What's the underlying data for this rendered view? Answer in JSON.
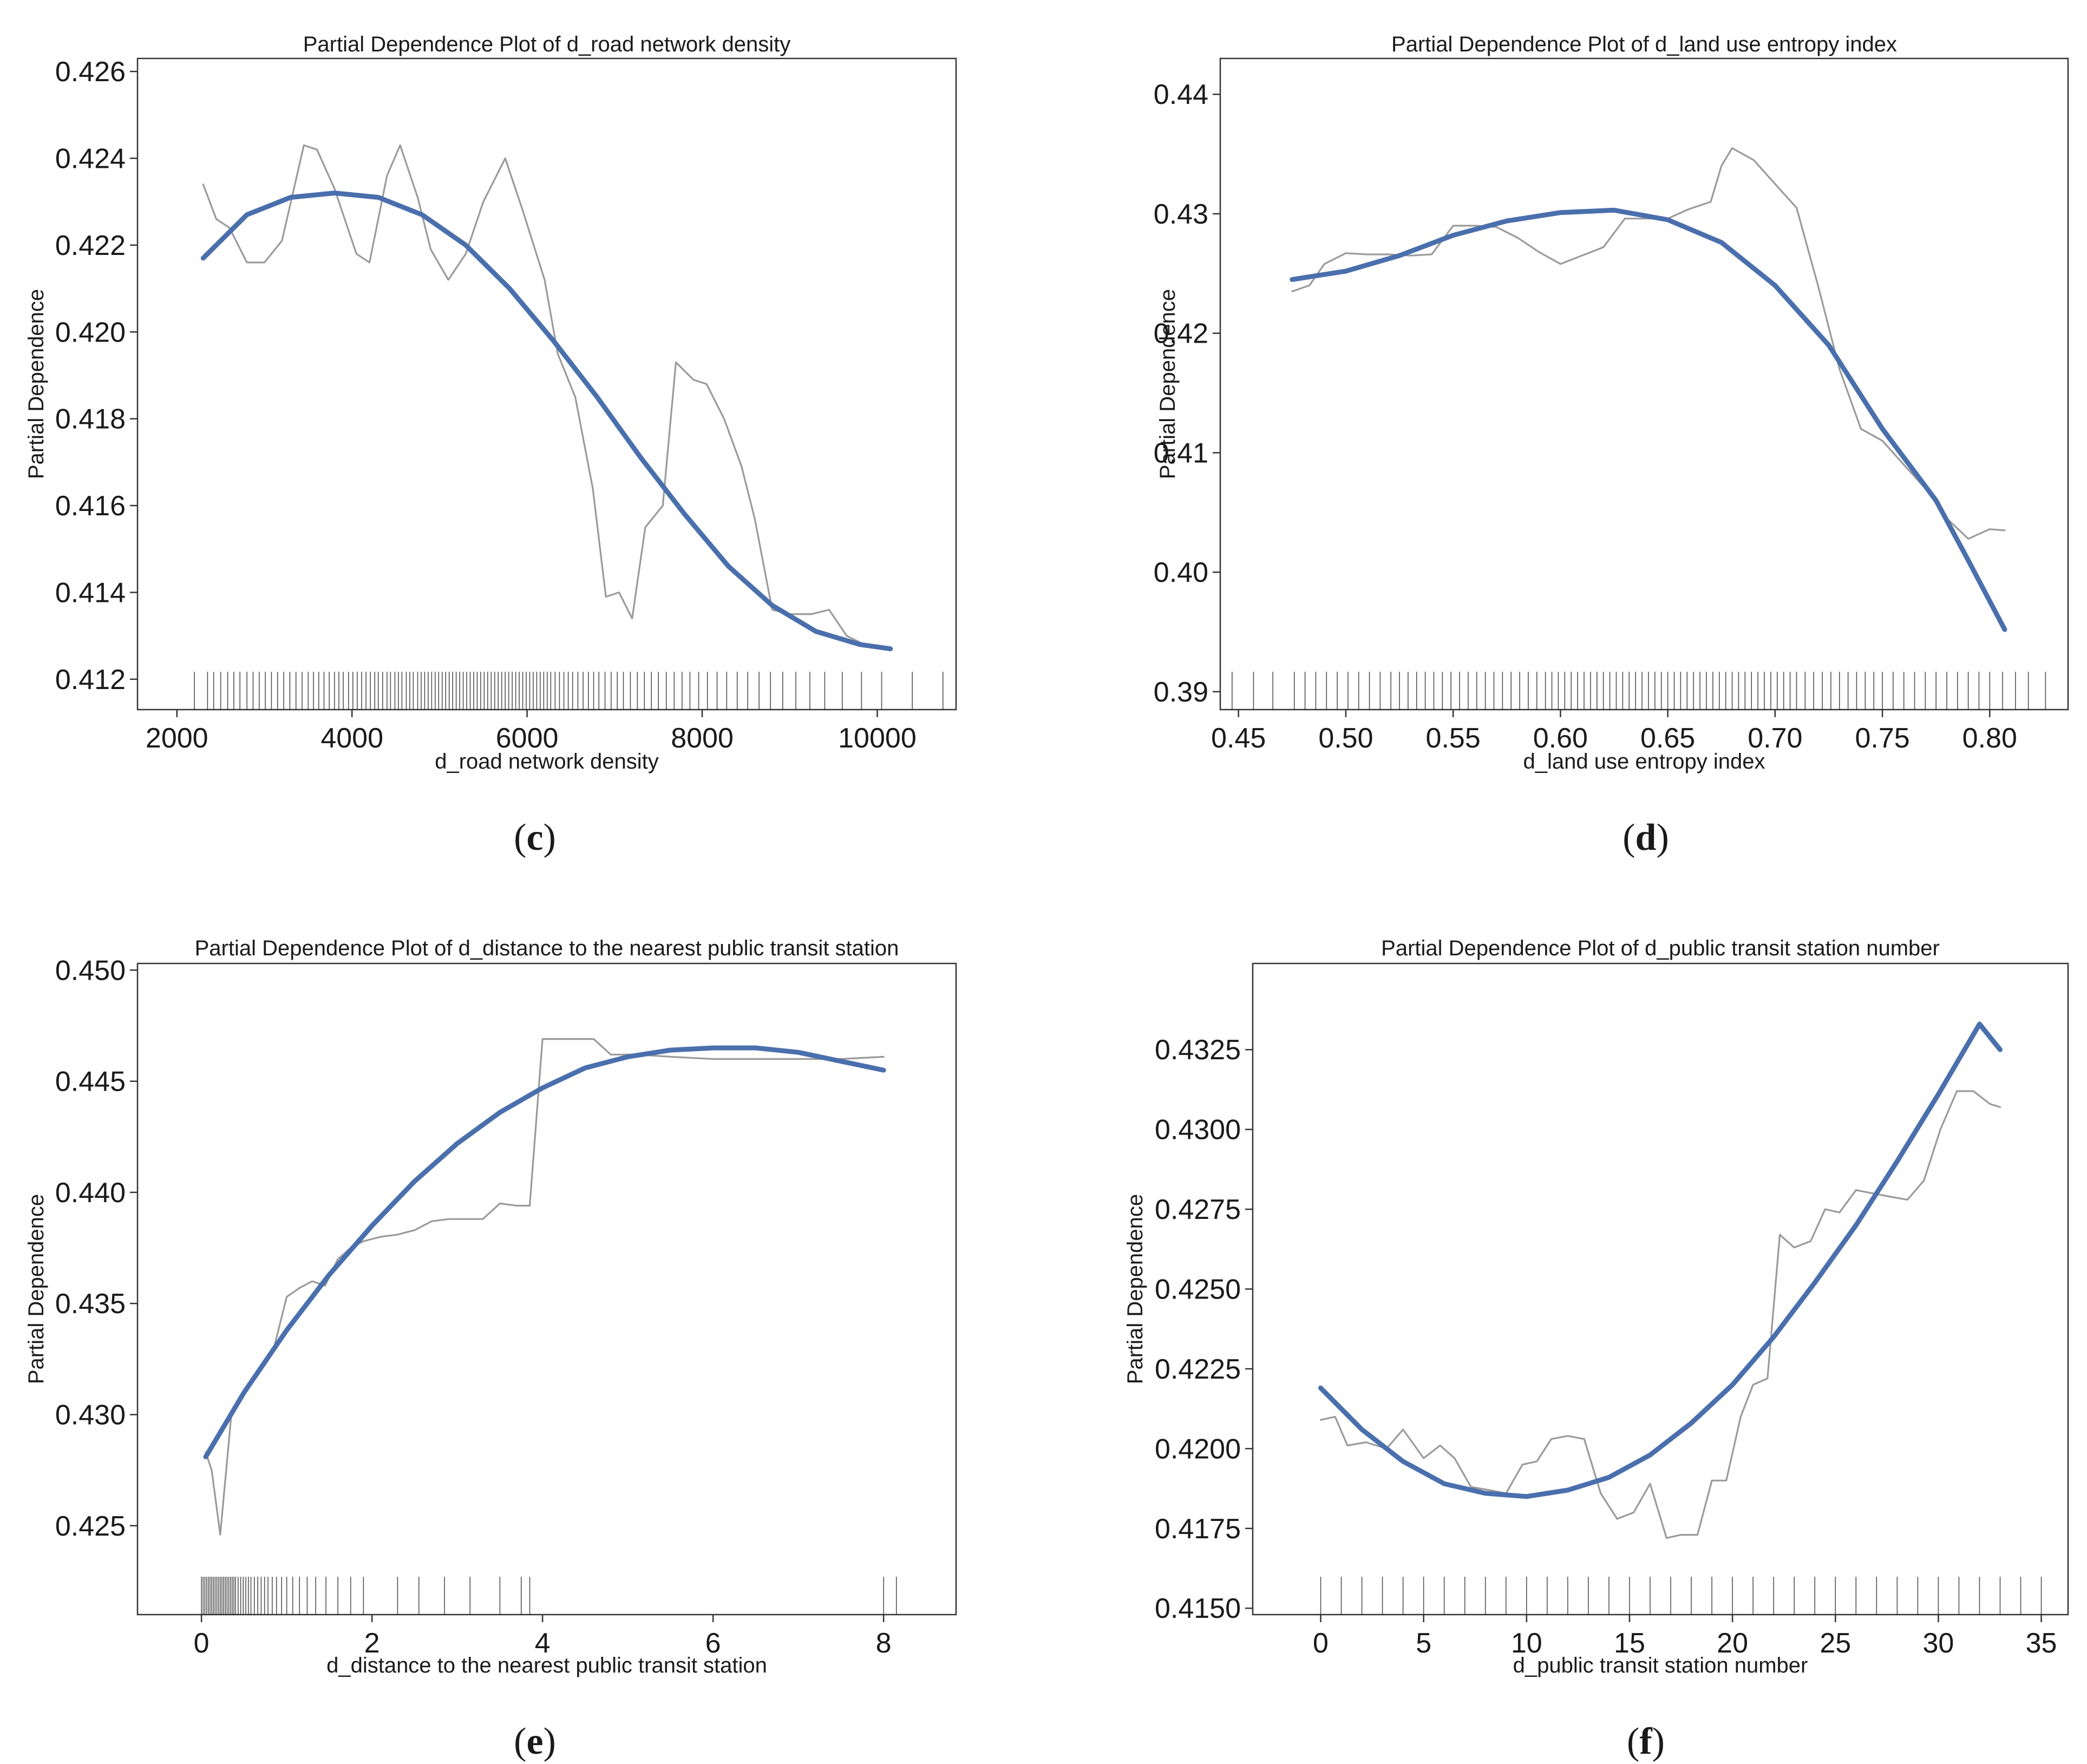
{
  "figure": {
    "colors": {
      "smooth": "#4a6fad",
      "pd_line": "#9a9a9a",
      "rug": "#1a1a1a",
      "axis": "#333333",
      "text": "#1a1a1a"
    }
  },
  "chart_data": [
    {
      "type": "line",
      "panel_label": "c",
      "title": "Partial Dependence Plot of d_road network density",
      "xlabel": "d_road network density",
      "ylabel": "Partial Dependence",
      "xlim": [
        1550,
        10900
      ],
      "ylim": [
        0.4113,
        0.4263
      ],
      "xticks": [
        2000,
        4000,
        6000,
        8000,
        10000
      ],
      "xtick_labels": [
        "2000",
        "4000",
        "6000",
        "8000",
        "10000"
      ],
      "yticks": [
        0.412,
        0.414,
        0.416,
        0.418,
        0.42,
        0.422,
        0.424,
        0.426
      ],
      "ytick_labels": [
        "0.412",
        "0.414",
        "0.416",
        "0.418",
        "0.420",
        "0.422",
        "0.424",
        "0.426"
      ],
      "series": [
        {
          "name": "Partial Dependence",
          "x": [
            2300,
            2450,
            2600,
            2800,
            3000,
            3200,
            3450,
            3600,
            3800,
            4050,
            4200,
            4400,
            4550,
            4750,
            4900,
            5100,
            5300,
            5500,
            5750,
            5950,
            6200,
            6350,
            6550,
            6750,
            6900,
            7050,
            7200,
            7350,
            7550,
            7700,
            7900,
            8050,
            8250,
            8450,
            8600,
            8800,
            9000,
            9250,
            9450,
            9650,
            9850,
            10100
          ],
          "y": [
            0.4234,
            0.4226,
            0.4224,
            0.4216,
            0.4216,
            0.4221,
            0.4243,
            0.4242,
            0.4233,
            0.4218,
            0.4216,
            0.4236,
            0.4243,
            0.4231,
            0.4219,
            0.4212,
            0.4218,
            0.423,
            0.424,
            0.4228,
            0.4212,
            0.4195,
            0.4185,
            0.4164,
            0.4139,
            0.414,
            0.4134,
            0.4155,
            0.416,
            0.4193,
            0.4189,
            0.4188,
            0.418,
            0.4169,
            0.4157,
            0.4136,
            0.4135,
            0.4135,
            0.4136,
            0.413,
            0.4128,
            0.4127
          ]
        },
        {
          "name": "Smoothed trend",
          "x": [
            2300,
            2800,
            3300,
            3800,
            4300,
            4800,
            5300,
            5800,
            6300,
            6800,
            7300,
            7800,
            8300,
            8800,
            9300,
            9800,
            10150
          ],
          "y": [
            0.4217,
            0.4227,
            0.4231,
            0.4232,
            0.4231,
            0.4227,
            0.422,
            0.421,
            0.4198,
            0.4185,
            0.4171,
            0.4158,
            0.4146,
            0.4137,
            0.4131,
            0.4128,
            0.4127
          ]
        }
      ],
      "rug": {
        "x": [
          2200,
          2350,
          2420,
          2500,
          2580,
          2650,
          2720,
          2800,
          2870,
          2940,
          3010,
          3080,
          3150,
          3220,
          3290,
          3360,
          3430,
          3500,
          3560,
          3620,
          3680,
          3740,
          3800,
          3850,
          3900,
          3960,
          4010,
          4060,
          4110,
          4160,
          4210,
          4260,
          4300,
          4350,
          4400,
          4440,
          4490,
          4530,
          4570,
          4620,
          4660,
          4700,
          4750,
          4790,
          4830,
          4870,
          4910,
          4950,
          4990,
          5030,
          5070,
          5110,
          5150,
          5190,
          5230,
          5270,
          5310,
          5350,
          5390,
          5430,
          5470,
          5510,
          5550,
          5590,
          5630,
          5670,
          5710,
          5750,
          5790,
          5830,
          5870,
          5910,
          5950,
          5990,
          6030,
          6070,
          6110,
          6150,
          6190,
          6230,
          6270,
          6320,
          6370,
          6420,
          6470,
          6520,
          6580,
          6640,
          6700,
          6760,
          6820,
          6890,
          6960,
          7030,
          7100,
          7180,
          7260,
          7340,
          7420,
          7500,
          7590,
          7680,
          7770,
          7860,
          7960,
          8060,
          8170,
          8280,
          8400,
          8520,
          8650,
          8780,
          8920,
          9070,
          9230,
          9400,
          9600,
          9820,
          10050,
          10400,
          10750
        ]
      }
    },
    {
      "type": "line",
      "panel_label": "d",
      "title": "Partial Dependence Plot of d_land use entropy index",
      "xlabel": "d_land use entropy index",
      "ylabel": "Partial Dependence",
      "xlim": [
        0.4415,
        0.8365
      ],
      "ylim": [
        0.3885,
        0.443
      ],
      "xticks": [
        0.45,
        0.5,
        0.55,
        0.6,
        0.65,
        0.7,
        0.75,
        0.8
      ],
      "xtick_labels": [
        "0.45",
        "0.50",
        "0.55",
        "0.60",
        "0.65",
        "0.70",
        "0.75",
        "0.80"
      ],
      "yticks": [
        0.39,
        0.4,
        0.41,
        0.42,
        0.43,
        0.44
      ],
      "ytick_labels": [
        "0.39",
        "0.40",
        "0.41",
        "0.42",
        "0.43",
        "0.44"
      ],
      "series": [
        {
          "name": "Partial Dependence",
          "x": [
            0.475,
            0.483,
            0.49,
            0.5,
            0.51,
            0.52,
            0.53,
            0.54,
            0.55,
            0.56,
            0.57,
            0.58,
            0.59,
            0.6,
            0.61,
            0.62,
            0.63,
            0.64,
            0.65,
            0.66,
            0.67,
            0.675,
            0.68,
            0.69,
            0.7,
            0.71,
            0.72,
            0.73,
            0.74,
            0.75,
            0.76,
            0.77,
            0.78,
            0.79,
            0.8,
            0.807
          ],
          "y": [
            0.4235,
            0.424,
            0.4258,
            0.4267,
            0.4266,
            0.4266,
            0.4265,
            0.4266,
            0.429,
            0.429,
            0.4289,
            0.428,
            0.4268,
            0.4258,
            0.4265,
            0.4272,
            0.4296,
            0.4296,
            0.4296,
            0.4304,
            0.431,
            0.434,
            0.4355,
            0.4345,
            0.4325,
            0.4305,
            0.424,
            0.417,
            0.412,
            0.411,
            0.409,
            0.407,
            0.4045,
            0.4028,
            0.4036,
            0.4035
          ]
        },
        {
          "name": "Smoothed trend",
          "x": [
            0.475,
            0.5,
            0.525,
            0.55,
            0.575,
            0.6,
            0.625,
            0.65,
            0.675,
            0.7,
            0.725,
            0.75,
            0.775,
            0.79,
            0.807
          ],
          "y": [
            0.4245,
            0.4252,
            0.4265,
            0.4282,
            0.4294,
            0.4301,
            0.4303,
            0.4295,
            0.4276,
            0.424,
            0.419,
            0.412,
            0.406,
            0.401,
            0.3952
          ]
        }
      ],
      "rug": {
        "x": [
          0.447,
          0.457,
          0.466,
          0.476,
          0.481,
          0.486,
          0.491,
          0.496,
          0.501,
          0.506,
          0.511,
          0.516,
          0.521,
          0.525,
          0.529,
          0.533,
          0.537,
          0.541,
          0.545,
          0.549,
          0.553,
          0.557,
          0.561,
          0.565,
          0.569,
          0.573,
          0.577,
          0.581,
          0.585,
          0.589,
          0.593,
          0.596,
          0.599,
          0.602,
          0.605,
          0.608,
          0.611,
          0.614,
          0.617,
          0.62,
          0.623,
          0.626,
          0.629,
          0.632,
          0.635,
          0.638,
          0.641,
          0.644,
          0.647,
          0.65,
          0.653,
          0.656,
          0.659,
          0.662,
          0.665,
          0.668,
          0.671,
          0.674,
          0.677,
          0.68,
          0.683,
          0.686,
          0.689,
          0.692,
          0.695,
          0.698,
          0.701,
          0.704,
          0.707,
          0.71,
          0.714,
          0.718,
          0.722,
          0.726,
          0.73,
          0.734,
          0.738,
          0.742,
          0.746,
          0.75,
          0.755,
          0.76,
          0.765,
          0.77,
          0.775,
          0.78,
          0.785,
          0.79,
          0.795,
          0.8,
          0.806,
          0.812,
          0.818,
          0.826
        ]
      }
    },
    {
      "type": "line",
      "panel_label": "e",
      "title": "Partial Dependence Plot of d_distance to the nearest public transit station",
      "xlabel": "d_distance to the nearest public transit station",
      "ylabel": "Partial Dependence",
      "xlim": [
        -0.75,
        8.85
      ],
      "ylim": [
        0.421,
        0.4503
      ],
      "xticks": [
        0,
        2,
        4,
        6,
        8
      ],
      "xtick_labels": [
        "0",
        "2",
        "4",
        "6",
        "8"
      ],
      "yticks": [
        0.425,
        0.43,
        0.435,
        0.44,
        0.445,
        0.45
      ],
      "ytick_labels": [
        "0.425",
        "0.430",
        "0.435",
        "0.440",
        "0.445",
        "0.450"
      ],
      "series": [
        {
          "name": "Partial Dependence",
          "x": [
            0.05,
            0.12,
            0.22,
            0.35,
            0.5,
            0.7,
            0.85,
            1.0,
            1.15,
            1.3,
            1.45,
            1.6,
            1.75,
            1.9,
            2.1,
            2.3,
            2.5,
            2.7,
            2.9,
            3.1,
            3.3,
            3.5,
            3.7,
            3.85,
            4.0,
            4.3,
            4.6,
            4.8,
            5.1,
            5.5,
            6.0,
            6.5,
            7.0,
            7.5,
            8.0
          ],
          "y": [
            0.4283,
            0.4275,
            0.4246,
            0.43,
            0.431,
            0.432,
            0.433,
            0.4353,
            0.4357,
            0.436,
            0.4358,
            0.437,
            0.4375,
            0.4378,
            0.438,
            0.4381,
            0.4383,
            0.4387,
            0.4388,
            0.4388,
            0.4388,
            0.4395,
            0.4394,
            0.4394,
            0.4469,
            0.4469,
            0.4469,
            0.4462,
            0.4462,
            0.4461,
            0.446,
            0.446,
            0.446,
            0.446,
            0.4461
          ]
        },
        {
          "name": "Smoothed trend",
          "x": [
            0.05,
            0.5,
            1.0,
            1.5,
            2.0,
            2.5,
            3.0,
            3.5,
            4.0,
            4.5,
            5.0,
            5.5,
            6.0,
            6.5,
            7.0,
            7.5,
            8.0
          ],
          "y": [
            0.4281,
            0.431,
            0.4338,
            0.4363,
            0.4385,
            0.4405,
            0.4422,
            0.4436,
            0.4447,
            0.4456,
            0.4461,
            0.4464,
            0.4465,
            0.4465,
            0.4463,
            0.4459,
            0.4455
          ]
        }
      ],
      "rug": {
        "x": [
          0.0,
          0.02,
          0.04,
          0.06,
          0.08,
          0.1,
          0.12,
          0.14,
          0.16,
          0.18,
          0.2,
          0.22,
          0.24,
          0.26,
          0.28,
          0.3,
          0.32,
          0.34,
          0.36,
          0.38,
          0.4,
          0.43,
          0.46,
          0.49,
          0.52,
          0.55,
          0.58,
          0.62,
          0.66,
          0.7,
          0.74,
          0.78,
          0.83,
          0.88,
          0.94,
          1.0,
          1.07,
          1.15,
          1.24,
          1.34,
          1.46,
          1.6,
          1.75,
          1.9,
          2.3,
          2.55,
          2.85,
          3.15,
          3.5,
          3.75,
          3.85,
          8.0,
          8.15
        ]
      }
    },
    {
      "type": "line",
      "panel_label": "f",
      "title": "Partial Dependence Plot of d_public transit station number",
      "xlabel": "d_public transit station number",
      "ylabel": "Partial Dependence",
      "xlim": [
        -3.3,
        36.3
      ],
      "ylim": [
        0.4148,
        0.4352
      ],
      "xticks": [
        0,
        5,
        10,
        15,
        20,
        25,
        30,
        35
      ],
      "xtick_labels": [
        "0",
        "5",
        "10",
        "15",
        "20",
        "25",
        "30",
        "35"
      ],
      "yticks": [
        0.415,
        0.4175,
        0.42,
        0.4225,
        0.425,
        0.4275,
        0.43,
        0.4325
      ],
      "ytick_labels": [
        "0.4150",
        "0.4175",
        "0.4200",
        "0.4225",
        "0.4250",
        "0.4275",
        "0.4300",
        "0.4325"
      ],
      "series": [
        {
          "name": "Partial Dependence",
          "x": [
            0,
            0.7,
            1.3,
            2.2,
            3.2,
            4.0,
            5.0,
            5.8,
            6.5,
            7.3,
            8.2,
            9.0,
            9.8,
            10.5,
            11.2,
            12.0,
            12.8,
            13.6,
            14.4,
            15.2,
            16.0,
            16.8,
            17.5,
            18.3,
            19.0,
            19.7,
            20.4,
            21.0,
            21.7,
            22.3,
            23.0,
            23.8,
            24.5,
            25.2,
            26.0,
            26.8,
            27.6,
            28.5,
            29.3,
            30.1,
            30.9,
            31.7,
            32.5,
            33.0
          ],
          "y": [
            0.4209,
            0.421,
            0.4201,
            0.4202,
            0.42,
            0.4206,
            0.4197,
            0.4201,
            0.4197,
            0.4188,
            0.4187,
            0.4186,
            0.4195,
            0.4196,
            0.4203,
            0.4204,
            0.4203,
            0.4186,
            0.4178,
            0.418,
            0.4189,
            0.4172,
            0.4173,
            0.4173,
            0.419,
            0.419,
            0.421,
            0.422,
            0.4222,
            0.4267,
            0.4263,
            0.4265,
            0.4275,
            0.4274,
            0.4281,
            0.428,
            0.4279,
            0.4278,
            0.4284,
            0.43,
            0.4312,
            0.4312,
            0.4308,
            0.4307
          ]
        },
        {
          "name": "Smoothed trend",
          "x": [
            0,
            2,
            4,
            6,
            8,
            10,
            12,
            14,
            16,
            18,
            20,
            22,
            24,
            26,
            28,
            30,
            32,
            33
          ],
          "y": [
            0.4219,
            0.4206,
            0.4196,
            0.4189,
            0.4186,
            0.4185,
            0.4187,
            0.4191,
            0.4198,
            0.4208,
            0.422,
            0.4235,
            0.4252,
            0.427,
            0.429,
            0.4311,
            0.4333,
            0.4325
          ]
        }
      ],
      "rug": {
        "x": [
          0,
          1,
          2,
          3,
          4,
          5,
          6,
          7,
          8,
          9,
          10,
          11,
          12,
          13,
          14,
          15,
          16,
          17,
          18,
          19,
          20,
          21,
          22,
          23,
          24,
          25,
          26,
          27,
          28,
          29,
          30,
          31,
          32,
          33,
          34,
          35
        ]
      }
    }
  ]
}
